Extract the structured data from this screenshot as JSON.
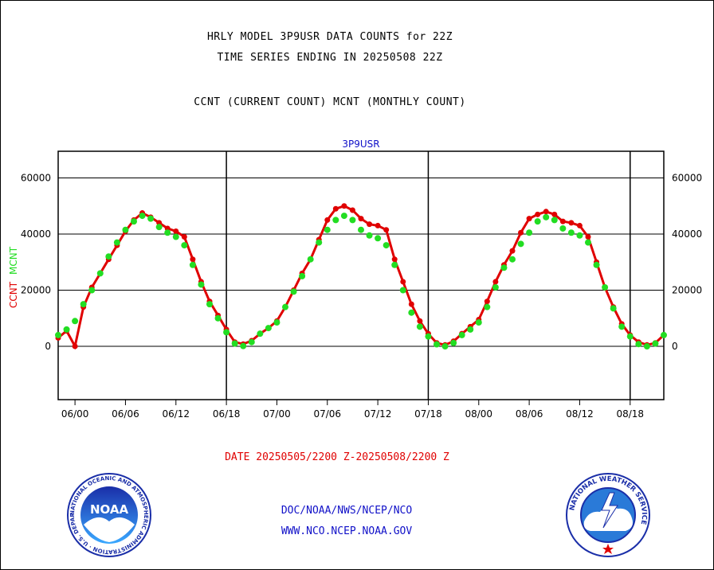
{
  "header": {
    "title_line1": "HRLY MODEL 3P9USR DATA COUNTS for 22Z",
    "title_line2": "TIME SERIES ENDING IN 20250508 22Z",
    "subtitle": "CCNT (CURRENT COUNT) MCNT (MONTHLY COUNT)"
  },
  "footer": {
    "date_range": "DATE 20250505/2200 Z-20250508/2200 Z",
    "org": "DOC/NOAA/NWS/NCEP/NCO",
    "url": "WWW.NCO.NCEP.NOAA.GOV"
  },
  "logos": {
    "noaa_text": "NOAA",
    "noaa_ring": "NATIONAL OCEANIC AND ATMOSPHERIC ADMINISTRATION · U.S. DEPARTMENT OF COMMERCE ·",
    "nws_ring": "NATIONAL WEATHER SERVICE"
  },
  "colors": {
    "ccnt": "#e00000",
    "mcnt": "#22dd22",
    "panel_title": "#1010c8",
    "axes": "#000000"
  },
  "chart_data": {
    "type": "line",
    "title": "3P9USR",
    "ylabel_ccnt": "CCNT",
    "ylabel_mcnt": "MCNT",
    "x_tick_labels": [
      "06/00",
      "06/06",
      "06/12",
      "06/18",
      "07/00",
      "07/06",
      "07/12",
      "07/18",
      "08/00",
      "08/06",
      "08/12",
      "08/18"
    ],
    "x_tick_hours": [
      0,
      6,
      12,
      18,
      24,
      30,
      36,
      42,
      48,
      54,
      60,
      66
    ],
    "x_day_boundaries": [
      18,
      42,
      66
    ],
    "x_range_hours": [
      -2,
      70
    ],
    "y_tick_values": [
      0,
      20000,
      40000,
      60000
    ],
    "y_tick_labels": [
      "0",
      "20000",
      "40000",
      "60000"
    ],
    "ylim": [
      -19000,
      69500
    ],
    "grid_y": true,
    "series": [
      {
        "name": "CCNT",
        "color": "#e00000",
        "x": [
          -2,
          -1,
          0,
          1,
          2,
          3,
          4,
          5,
          6,
          7,
          8,
          9,
          10,
          11,
          12,
          13,
          14,
          15,
          16,
          17,
          18,
          19,
          20,
          21,
          22,
          23,
          24,
          25,
          26,
          27,
          28,
          29,
          30,
          31,
          32,
          33,
          34,
          35,
          36,
          37,
          38,
          39,
          40,
          41,
          42,
          43,
          44,
          45,
          46,
          47,
          48,
          49,
          50,
          51,
          52,
          53,
          54,
          55,
          56,
          57,
          58,
          59,
          60,
          61,
          62,
          63,
          64,
          65,
          66,
          67,
          68,
          69,
          70
        ],
        "values": [
          3000,
          5500,
          0,
          14000,
          21000,
          26000,
          31000,
          36000,
          41000,
          45000,
          47500,
          46000,
          44000,
          42000,
          41000,
          39000,
          31000,
          23000,
          16000,
          11000,
          6000,
          1500,
          800,
          2000,
          4500,
          6500,
          9000,
          14000,
          20000,
          26000,
          31000,
          38000,
          45000,
          49000,
          50000,
          48500,
          45500,
          43500,
          43000,
          41500,
          31000,
          23000,
          15000,
          9000,
          4500,
          1200,
          500,
          1800,
          4500,
          7000,
          9500,
          16000,
          23000,
          29000,
          34000,
          40500,
          45500,
          47000,
          48000,
          47000,
          44500,
          44000,
          43000,
          39000,
          30000,
          21000,
          14000,
          8000,
          4000,
          1500,
          500,
          1200,
          4000
        ]
      },
      {
        "name": "MCNT",
        "color": "#22dd22",
        "x": [
          -2,
          -1,
          0,
          1,
          2,
          3,
          4,
          5,
          6,
          7,
          8,
          9,
          10,
          11,
          12,
          13,
          14,
          15,
          16,
          17,
          18,
          19,
          20,
          21,
          22,
          23,
          24,
          25,
          26,
          27,
          28,
          29,
          30,
          31,
          32,
          33,
          34,
          35,
          36,
          37,
          38,
          39,
          40,
          41,
          42,
          43,
          44,
          45,
          46,
          47,
          48,
          49,
          50,
          51,
          52,
          53,
          54,
          55,
          56,
          57,
          58,
          59,
          60,
          61,
          62,
          63,
          64,
          65,
          66,
          67,
          68,
          69,
          70
        ],
        "values": [
          4000,
          6000,
          9000,
          15000,
          20000,
          26000,
          32000,
          37000,
          41500,
          44500,
          46500,
          45500,
          42500,
          40500,
          39000,
          36000,
          29000,
          22000,
          15000,
          10000,
          5000,
          1000,
          100,
          1500,
          4500,
          6500,
          8500,
          14000,
          19500,
          25000,
          31000,
          37000,
          41500,
          45000,
          46500,
          45000,
          41500,
          39500,
          38500,
          36000,
          29000,
          20000,
          12000,
          7000,
          3500,
          700,
          0,
          1200,
          4000,
          6000,
          8500,
          14000,
          21000,
          28000,
          31000,
          36500,
          40500,
          44500,
          46000,
          45000,
          42000,
          40500,
          39500,
          37000,
          29000,
          21000,
          13500,
          7000,
          3500,
          800,
          0,
          1000,
          4000
        ]
      }
    ]
  }
}
